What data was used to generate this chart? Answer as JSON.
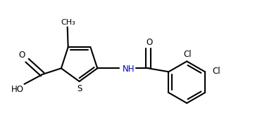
{
  "bg_color": "#ffffff",
  "line_color": "#000000",
  "text_color": "#000000",
  "nh_color": "#0000cd",
  "line_width": 1.5,
  "dpi": 100,
  "figsize": [
    3.62,
    1.71
  ],
  "xlim": [
    0.0,
    3.62
  ],
  "ylim": [
    0.0,
    1.71
  ]
}
